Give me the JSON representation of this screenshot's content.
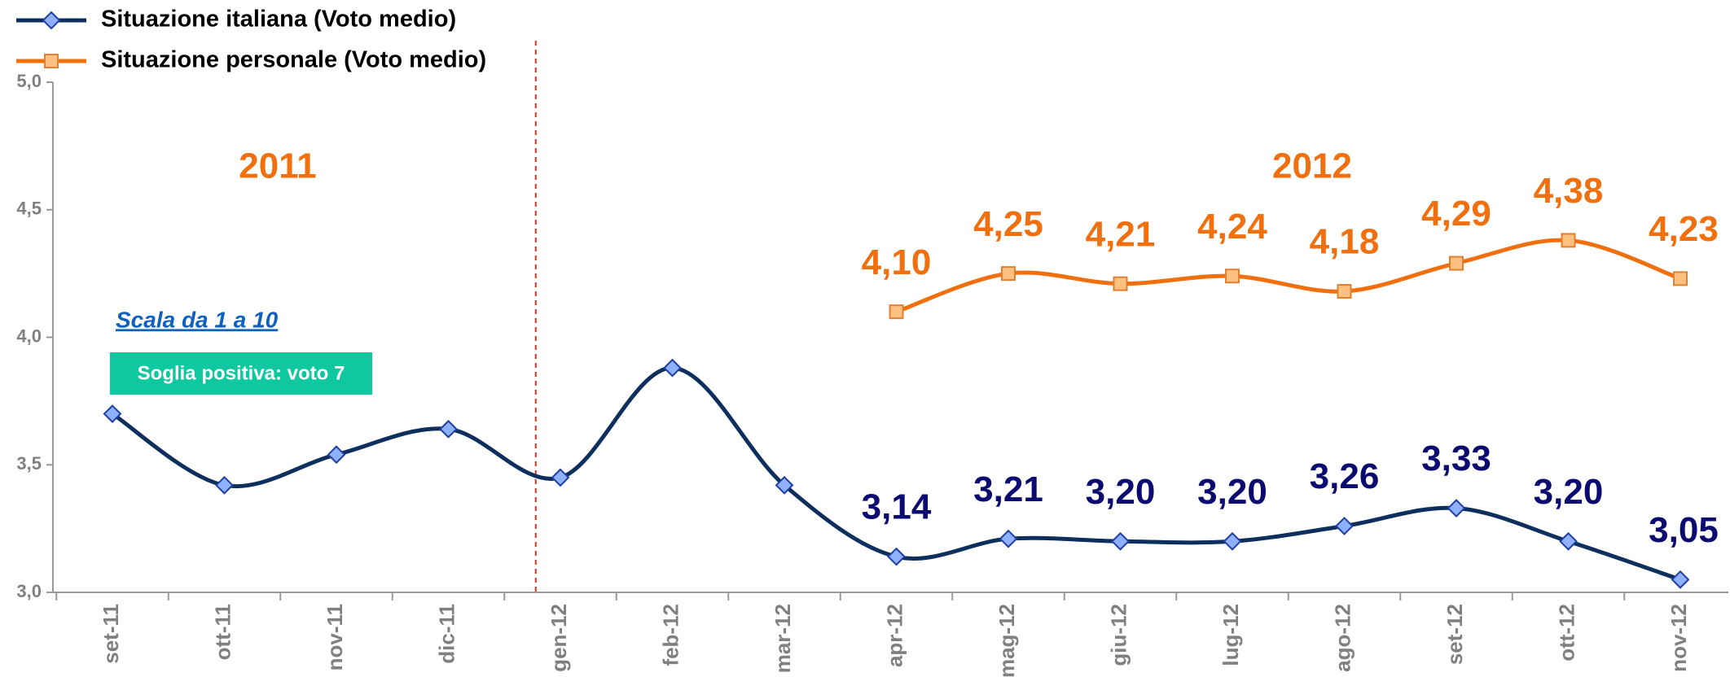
{
  "chart_data": {
    "type": "line",
    "categories": [
      "set-11",
      "ott-11",
      "nov-11",
      "dic-11",
      "gen-12",
      "feb-12",
      "mar-12",
      "apr-12",
      "mag-12",
      "giu-12",
      "lug-12",
      "ago-12",
      "set-12",
      "ott-12",
      "nov-12"
    ],
    "series": [
      {
        "name": "Situazione italiana (Voto medio)",
        "color": "#0d2f5e",
        "marker": "diamond",
        "marker_color": "#8fb0ff",
        "label_color": "#0a0a70",
        "values": [
          3.7,
          3.42,
          3.54,
          3.64,
          3.45,
          3.88,
          3.42,
          3.14,
          3.21,
          3.2,
          3.2,
          3.26,
          3.33,
          3.2,
          3.05
        ],
        "value_labels": [
          null,
          null,
          null,
          null,
          null,
          null,
          null,
          "3,14",
          "3,21",
          "3,20",
          "3,20",
          "3,26",
          "3,33",
          "3,20",
          "3,05"
        ]
      },
      {
        "name": "Situazione personale (Voto medio)",
        "color": "#f07010",
        "marker": "square",
        "marker_color": "#ffc080",
        "label_color": "#f07010",
        "values": [
          null,
          null,
          null,
          null,
          null,
          null,
          null,
          4.1,
          4.25,
          4.21,
          4.24,
          4.18,
          4.29,
          4.38,
          4.23
        ],
        "value_labels": [
          null,
          null,
          null,
          null,
          null,
          null,
          null,
          "4,10",
          "4,25",
          "4,21",
          "4,24",
          "4,18",
          "4,29",
          "4,38",
          "4,23"
        ]
      }
    ],
    "ylim": [
      3,
      5
    ],
    "yticks": [
      {
        "value": 3,
        "label": "3,0"
      },
      {
        "value": 3.5,
        "label": "3,5"
      },
      {
        "value": 4,
        "label": "4,0"
      },
      {
        "value": 4.5,
        "label": "4,5"
      },
      {
        "value": 5,
        "label": "5,0"
      }
    ],
    "annotations": [
      "2011",
      "2012",
      "Scala da 1 a 10",
      "Soglia positiva: voto 7"
    ],
    "grid": false,
    "legend": "top-left"
  }
}
